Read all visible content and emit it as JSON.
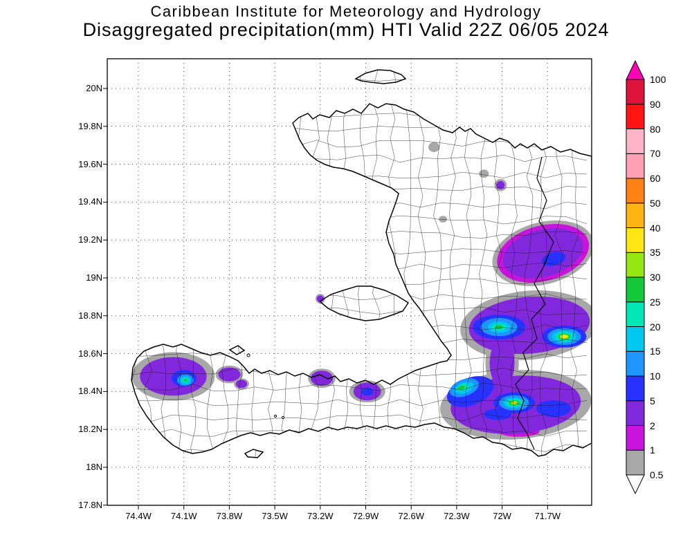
{
  "title": {
    "line1": "Caribbean Institute for Meteorology and Hydrology",
    "line2": "Disaggregated precipitation(mm) HTI Valid 22Z 06/05 2024"
  },
  "chart_data": {
    "type": "heatmap",
    "title": "Disaggregated precipitation(mm) HTI Valid 22Z 06/05 2024",
    "source": "Caribbean Institute for Meteorology and Hydrology",
    "region": "HTI",
    "valid_time": "22Z 06/05 2024",
    "units": "mm",
    "x_axis": {
      "ticks": [
        {
          "label": "74.4W",
          "lon": -74.4
        },
        {
          "label": "74.1W",
          "lon": -74.1
        },
        {
          "label": "73.8W",
          "lon": -73.8
        },
        {
          "label": "73.5W",
          "lon": -73.5
        },
        {
          "label": "73.2W",
          "lon": -73.2
        },
        {
          "label": "72.9W",
          "lon": -72.9
        },
        {
          "label": "72.6W",
          "lon": -72.6
        },
        {
          "label": "72.3W",
          "lon": -72.3
        },
        {
          "label": "72W",
          "lon": -72.0
        },
        {
          "label": "71.7W",
          "lon": -71.7
        }
      ]
    },
    "y_axis": {
      "ticks": [
        {
          "label": "20N",
          "lat": 20.0
        },
        {
          "label": "19.8N",
          "lat": 19.8
        },
        {
          "label": "19.6N",
          "lat": 19.6
        },
        {
          "label": "19.4N",
          "lat": 19.4
        },
        {
          "label": "19.2N",
          "lat": 19.2
        },
        {
          "label": "19N",
          "lat": 19.0
        },
        {
          "label": "18.8N",
          "lat": 18.8
        },
        {
          "label": "18.6N",
          "lat": 18.6
        },
        {
          "label": "18.4N",
          "lat": 18.4
        },
        {
          "label": "18.2N",
          "lat": 18.2
        },
        {
          "label": "18N",
          "lat": 18.0
        },
        {
          "label": "17.8N",
          "lat": 17.8
        }
      ]
    },
    "colorbar": {
      "tick_labels_bottom_to_top": [
        "0.5",
        "1",
        "2",
        "5",
        "10",
        "15",
        "20",
        "25",
        "30",
        "35",
        "40",
        "50",
        "60",
        "70",
        "80",
        "90",
        "100"
      ],
      "band_colors_bottom_to_top": [
        "#a8a8a8",
        "#c814dc",
        "#8228dc",
        "#2832ff",
        "#1e96ff",
        "#00c8f0",
        "#00e6b4",
        "#14c83c",
        "#96e614",
        "#ffe614",
        "#ffb414",
        "#ff8214",
        "#ffa0b4",
        "#ffb4c8",
        "#ff1414",
        "#dc143c"
      ],
      "arrow_top_color": "#ff00b4",
      "arrow_bottom_color": "#ffffff"
    },
    "level_colors": {
      "0.5": "#a8a8a8",
      "1": "#c814dc",
      "2": "#8228dc",
      "5": "#2832ff",
      "10": "#1e96ff",
      "15": "#00c8f0",
      "20": "#00e6b4",
      "25": "#14c83c",
      "30": "#96e614",
      "35": "#ffe614"
    },
    "precip_blobs": [
      {
        "level": "0.5",
        "lon": -72.45,
        "lat": 19.69,
        "rx": 0.037,
        "ry": 0.026,
        "rot": 0
      },
      {
        "level": "0.5",
        "lon": -72.12,
        "lat": 19.55,
        "rx": 0.032,
        "ry": 0.022,
        "rot": 0
      },
      {
        "level": "0.5",
        "lon": -72.39,
        "lat": 19.31,
        "rx": 0.027,
        "ry": 0.018,
        "rot": 0
      },
      {
        "level": "0.5",
        "lon": -72.01,
        "lat": 19.49,
        "rx": 0.041,
        "ry": 0.033,
        "rot": 0
      },
      {
        "level": "2",
        "lon": -72.01,
        "lat": 19.49,
        "rx": 0.027,
        "ry": 0.022,
        "rot": 0
      },
      {
        "level": "0.5",
        "lon": -71.73,
        "lat": 19.13,
        "rx": 0.342,
        "ry": 0.164,
        "rot": -15
      },
      {
        "level": "1",
        "lon": -71.73,
        "lat": 19.13,
        "rx": 0.31,
        "ry": 0.146,
        "rot": -15
      },
      {
        "level": "2",
        "lon": -71.73,
        "lat": 19.13,
        "rx": 0.27,
        "ry": 0.124,
        "rot": -15
      },
      {
        "level": "5",
        "lon": -71.66,
        "lat": 19.1,
        "rx": 0.08,
        "ry": 0.035,
        "rot": -15
      },
      {
        "level": "0.5",
        "lon": -71.82,
        "lat": 18.75,
        "rx": 0.457,
        "ry": 0.182,
        "rot": -5
      },
      {
        "level": "2",
        "lon": -71.82,
        "lat": 18.75,
        "rx": 0.4,
        "ry": 0.15,
        "rot": -5
      },
      {
        "level": "5",
        "lon": -72.02,
        "lat": 18.74,
        "rx": 0.173,
        "ry": 0.066,
        "rot": 0
      },
      {
        "level": "10",
        "lon": -72.02,
        "lat": 18.74,
        "rx": 0.12,
        "ry": 0.048,
        "rot": 0
      },
      {
        "level": "15",
        "lon": -72.02,
        "lat": 18.74,
        "rx": 0.075,
        "ry": 0.03,
        "rot": 0
      },
      {
        "level": "20",
        "lon": -72.02,
        "lat": 18.74,
        "rx": 0.045,
        "ry": 0.018,
        "rot": 0
      },
      {
        "level": "25",
        "lon": -72.02,
        "lat": 18.74,
        "rx": 0.025,
        "ry": 0.011,
        "rot": 0
      },
      {
        "level": "5",
        "lon": -71.59,
        "lat": 18.69,
        "rx": 0.146,
        "ry": 0.058,
        "rot": 0
      },
      {
        "level": "10",
        "lon": -71.59,
        "lat": 18.69,
        "rx": 0.11,
        "ry": 0.044,
        "rot": 0
      },
      {
        "level": "15",
        "lon": -71.59,
        "lat": 18.69,
        "rx": 0.08,
        "ry": 0.033,
        "rot": 0
      },
      {
        "level": "20",
        "lon": -71.59,
        "lat": 18.69,
        "rx": 0.055,
        "ry": 0.024,
        "rot": 0
      },
      {
        "level": "25",
        "lon": -71.59,
        "lat": 18.69,
        "rx": 0.04,
        "ry": 0.016,
        "rot": 0
      },
      {
        "level": "30",
        "lon": -71.59,
        "lat": 18.69,
        "rx": 0.03,
        "ry": 0.012,
        "rot": 0
      },
      {
        "level": "35",
        "lon": -71.59,
        "lat": 18.69,
        "rx": 0.02,
        "ry": 0.008,
        "rot": 0
      },
      {
        "level": "0.5",
        "lon": -72.0,
        "lat": 18.55,
        "rx": 0.11,
        "ry": 0.155,
        "rot": 0
      },
      {
        "level": "2",
        "lon": -72.0,
        "lat": 18.55,
        "rx": 0.082,
        "ry": 0.128,
        "rot": 0
      },
      {
        "level": "0.5",
        "lon": -71.91,
        "lat": 18.33,
        "rx": 0.5,
        "ry": 0.182,
        "rot": -4
      },
      {
        "level": "2",
        "lon": -71.91,
        "lat": 18.33,
        "rx": 0.43,
        "ry": 0.153,
        "rot": -4
      },
      {
        "level": "1",
        "lon": -71.89,
        "lat": 18.19,
        "rx": 0.137,
        "ry": 0.029,
        "rot": 0
      },
      {
        "level": "5",
        "lon": -72.21,
        "lat": 18.4,
        "rx": 0.16,
        "ry": 0.073,
        "rot": -20
      },
      {
        "level": "10",
        "lon": -72.25,
        "lat": 18.42,
        "rx": 0.1,
        "ry": 0.044,
        "rot": -20
      },
      {
        "level": "15",
        "lon": -72.25,
        "lat": 18.42,
        "rx": 0.065,
        "ry": 0.028,
        "rot": -20
      },
      {
        "level": "20",
        "lon": -72.26,
        "lat": 18.42,
        "rx": 0.04,
        "ry": 0.018,
        "rot": -20
      },
      {
        "level": "25",
        "lon": -72.27,
        "lat": 18.42,
        "rx": 0.025,
        "ry": 0.011,
        "rot": -20
      },
      {
        "level": "5",
        "lon": -71.92,
        "lat": 18.34,
        "rx": 0.137,
        "ry": 0.055,
        "rot": 0
      },
      {
        "level": "10",
        "lon": -71.92,
        "lat": 18.34,
        "rx": 0.1,
        "ry": 0.04,
        "rot": 0
      },
      {
        "level": "15",
        "lon": -71.92,
        "lat": 18.34,
        "rx": 0.07,
        "ry": 0.028,
        "rot": 0
      },
      {
        "level": "20",
        "lon": -71.92,
        "lat": 18.34,
        "rx": 0.05,
        "ry": 0.02,
        "rot": 0
      },
      {
        "level": "25",
        "lon": -71.92,
        "lat": 18.34,
        "rx": 0.035,
        "ry": 0.014,
        "rot": 0
      },
      {
        "level": "30",
        "lon": -71.92,
        "lat": 18.34,
        "rx": 0.024,
        "ry": 0.009,
        "rot": 0
      },
      {
        "level": "35",
        "lon": -71.92,
        "lat": 18.34,
        "rx": 0.014,
        "ry": 0.006,
        "rot": 0
      },
      {
        "level": "5",
        "lon": -71.66,
        "lat": 18.31,
        "rx": 0.114,
        "ry": 0.044,
        "rot": 0
      },
      {
        "level": "5",
        "lon": -72.03,
        "lat": 18.28,
        "rx": 0.09,
        "ry": 0.03,
        "rot": 0
      },
      {
        "level": "0.5",
        "lon": -74.17,
        "lat": 18.48,
        "rx": 0.274,
        "ry": 0.128,
        "rot": 0
      },
      {
        "level": "2",
        "lon": -74.17,
        "lat": 18.48,
        "rx": 0.22,
        "ry": 0.102,
        "rot": 0
      },
      {
        "level": "5",
        "lon": -74.1,
        "lat": 18.47,
        "rx": 0.082,
        "ry": 0.044,
        "rot": 0
      },
      {
        "level": "10",
        "lon": -74.09,
        "lat": 18.46,
        "rx": 0.055,
        "ry": 0.03,
        "rot": 0
      },
      {
        "level": "15",
        "lon": -74.09,
        "lat": 18.46,
        "rx": 0.036,
        "ry": 0.02,
        "rot": 0
      },
      {
        "level": "20",
        "lon": -74.09,
        "lat": 18.46,
        "rx": 0.022,
        "ry": 0.012,
        "rot": 0
      },
      {
        "level": "25",
        "lon": -74.09,
        "lat": 18.46,
        "rx": 0.013,
        "ry": 0.007,
        "rot": 0
      },
      {
        "level": "0.5",
        "lon": -73.8,
        "lat": 18.49,
        "rx": 0.091,
        "ry": 0.047,
        "rot": 0
      },
      {
        "level": "2",
        "lon": -73.8,
        "lat": 18.49,
        "rx": 0.073,
        "ry": 0.037,
        "rot": 0
      },
      {
        "level": "0.5",
        "lon": -73.72,
        "lat": 18.44,
        "rx": 0.05,
        "ry": 0.03,
        "rot": 0
      },
      {
        "level": "2",
        "lon": -73.72,
        "lat": 18.44,
        "rx": 0.037,
        "ry": 0.022,
        "rot": 0
      },
      {
        "level": "0.5",
        "lon": -73.19,
        "lat": 18.47,
        "rx": 0.091,
        "ry": 0.051,
        "rot": 0
      },
      {
        "level": "2",
        "lon": -73.19,
        "lat": 18.47,
        "rx": 0.073,
        "ry": 0.04,
        "rot": 0
      },
      {
        "level": "0.5",
        "lon": -72.89,
        "lat": 18.4,
        "rx": 0.119,
        "ry": 0.058,
        "rot": 0
      },
      {
        "level": "2",
        "lon": -72.89,
        "lat": 18.4,
        "rx": 0.091,
        "ry": 0.047,
        "rot": 0
      },
      {
        "level": "5",
        "lon": -72.89,
        "lat": 18.4,
        "rx": 0.041,
        "ry": 0.022,
        "rot": 0
      },
      {
        "level": "0.5",
        "lon": -73.2,
        "lat": 18.89,
        "rx": 0.032,
        "ry": 0.026,
        "rot": 0
      },
      {
        "level": "2",
        "lon": -73.2,
        "lat": 18.89,
        "rx": 0.023,
        "ry": 0.018,
        "rot": 0
      }
    ]
  }
}
